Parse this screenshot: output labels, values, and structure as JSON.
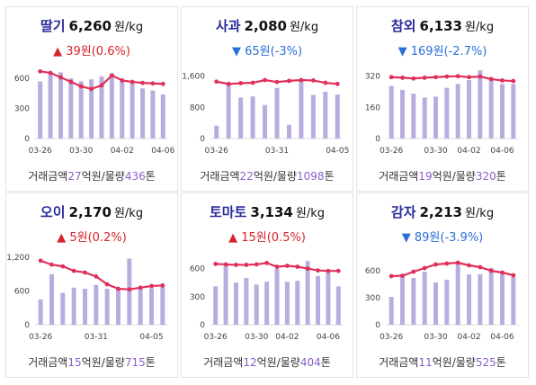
{
  "currency_unit": "원/kg",
  "footer": {
    "amount_prefix": "거래금액",
    "amount_suffix": "억원/물량",
    "volume_suffix": "톤"
  },
  "colors": {
    "line": "#e0305a",
    "bar": "#b9addf",
    "up": "#d8232a",
    "down": "#2b6fd6",
    "name": "#2a2a9c",
    "accent_number": "#8a5fc9"
  },
  "cards": [
    {
      "name": "딸기",
      "price": "6,260",
      "change": "39원(0.6%)",
      "direction": "up",
      "arrow": "▲",
      "amount": "27",
      "volume": "436",
      "chart_data": {
        "type": "bar+line",
        "ylim": [
          0,
          700
        ],
        "yticks": [
          "600",
          "300",
          "0"
        ],
        "ytick_values": [
          600,
          300,
          0
        ],
        "xlabels": [
          "03-26",
          "03-30",
          "04-02",
          "04-06"
        ],
        "xlabel_index": [
          0,
          4,
          8,
          12
        ],
        "bars": [
          570,
          640,
          660,
          600,
          570,
          590,
          620,
          650,
          580,
          560,
          500,
          480,
          440
        ],
        "line": [
          670,
          655,
          610,
          565,
          520,
          495,
          530,
          630,
          580,
          565,
          555,
          550,
          545
        ]
      }
    },
    {
      "name": "사과",
      "price": "2,080",
      "change": "65원(-3%)",
      "direction": "down",
      "arrow": "▼",
      "amount": "22",
      "volume": "1098",
      "chart_data": {
        "type": "bar+line",
        "ylim": [
          0,
          1800
        ],
        "yticks": [
          "1,600",
          "800",
          "0"
        ],
        "ytick_values": [
          1600,
          800,
          0
        ],
        "xlabels": [
          "03-26",
          "03-31",
          "04-05"
        ],
        "xlabel_index": [
          0,
          5,
          10
        ],
        "bars": [
          330,
          1380,
          1050,
          1080,
          860,
          1300,
          350,
          1500,
          1120,
          1200,
          1130
        ],
        "line": [
          1460,
          1400,
          1420,
          1430,
          1500,
          1450,
          1480,
          1500,
          1490,
          1430,
          1400
        ]
      }
    },
    {
      "name": "참외",
      "price": "6,133",
      "change": "169원(-2.7%)",
      "direction": "down",
      "arrow": "▼",
      "amount": "19",
      "volume": "320",
      "chart_data": {
        "type": "bar+line",
        "ylim": [
          0,
          360
        ],
        "yticks": [
          "320",
          "160",
          "0"
        ],
        "ytick_values": [
          320,
          160,
          0
        ],
        "xlabels": [
          "03-26",
          "03-30",
          "04-02",
          "04-06"
        ],
        "xlabel_index": [
          0,
          4,
          7,
          10
        ],
        "bars": [
          270,
          250,
          230,
          210,
          215,
          260,
          280,
          300,
          350,
          310,
          280,
          280
        ],
        "line": [
          315,
          312,
          308,
          312,
          315,
          318,
          320,
          315,
          318,
          305,
          298,
          295
        ]
      }
    },
    {
      "name": "오이",
      "price": "2,170",
      "change": "5원(0.2%)",
      "direction": "up",
      "arrow": "▲",
      "amount": "15",
      "volume": "715",
      "chart_data": {
        "type": "bar+line",
        "ylim": [
          0,
          1250
        ],
        "yticks": [
          "1,200",
          "600",
          "0"
        ],
        "ytick_values": [
          1200,
          600,
          0
        ],
        "xlabels": [
          "03-26",
          "03-31",
          "04-05"
        ],
        "xlabel_index": [
          0,
          5,
          10
        ],
        "bars": [
          450,
          900,
          570,
          660,
          640,
          710,
          640,
          640,
          1180,
          660,
          650,
          700
        ],
        "line": [
          1140,
          1070,
          1040,
          960,
          930,
          860,
          720,
          640,
          630,
          660,
          690,
          700
        ]
      }
    },
    {
      "name": "토마토",
      "price": "3,134",
      "change": "15원(0.5%)",
      "direction": "up",
      "arrow": "▲",
      "amount": "12",
      "volume": "404",
      "chart_data": {
        "type": "bar+line",
        "ylim": [
          0,
          750
        ],
        "yticks": [
          "600",
          "300",
          "0"
        ],
        "ytick_values": [
          600,
          300,
          0
        ],
        "xlabels": [
          "03-26",
          "03-30",
          "04-02",
          "04-06"
        ],
        "xlabel_index": [
          0,
          4,
          7,
          11
        ],
        "bars": [
          410,
          640,
          450,
          500,
          430,
          460,
          600,
          460,
          470,
          680,
          520,
          560,
          410
        ],
        "line": [
          650,
          645,
          640,
          640,
          645,
          660,
          620,
          630,
          620,
          600,
          580,
          575,
          575
        ]
      }
    },
    {
      "name": "감자",
      "price": "2,213",
      "change": "89원(-3.9%)",
      "direction": "down",
      "arrow": "▼",
      "amount": "11",
      "volume": "525",
      "chart_data": {
        "type": "bar+line",
        "ylim": [
          0,
          780
        ],
        "yticks": [
          "600",
          "300",
          "0"
        ],
        "ytick_values": [
          600,
          300,
          0
        ],
        "xlabels": [
          "03-26",
          "03-30",
          "04-02",
          "04-06"
        ],
        "xlabel_index": [
          0,
          4,
          7,
          10
        ],
        "bars": [
          310,
          560,
          520,
          590,
          470,
          500,
          680,
          560,
          560,
          630,
          560,
          530
        ],
        "line": [
          540,
          545,
          590,
          630,
          670,
          680,
          690,
          660,
          640,
          600,
          580,
          550
        ]
      }
    }
  ]
}
